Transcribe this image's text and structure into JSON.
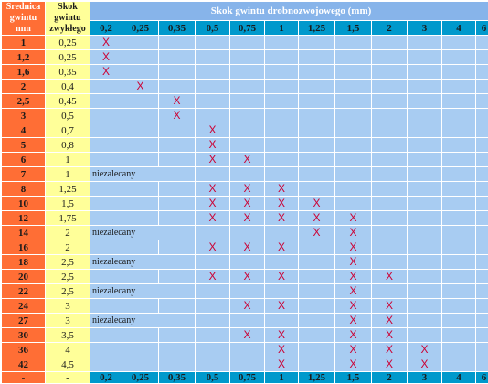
{
  "header": {
    "diam_label": "Średnica gwintu mm",
    "std_label": "Skok gwintu zwykłego",
    "fine_title": "Skok gwintu drobnozwojowego (mm)"
  },
  "pitches": [
    "0,2",
    "0,25",
    "0,35",
    "0,5",
    "0,75",
    "1",
    "1,25",
    "1,5",
    "2",
    "3",
    "4",
    "6"
  ],
  "rows": [
    {
      "d": "1",
      "s": "0,25",
      "x": [
        0
      ]
    },
    {
      "d": "1,2",
      "s": "0,25",
      "x": [
        0
      ]
    },
    {
      "d": "1,6",
      "s": "0,35",
      "x": [
        0
      ]
    },
    {
      "d": "2",
      "s": "0,4",
      "x": [
        1
      ]
    },
    {
      "d": "2,5",
      "s": "0,45",
      "x": [
        2
      ]
    },
    {
      "d": "3",
      "s": "0,5",
      "x": [
        2
      ]
    },
    {
      "d": "4",
      "s": "0,7",
      "x": [
        3
      ]
    },
    {
      "d": "5",
      "s": "0,8",
      "x": [
        3
      ]
    },
    {
      "d": "6",
      "s": "1",
      "x": [
        3,
        4
      ]
    },
    {
      "d": "7",
      "s": "1",
      "x": [],
      "note": "niezalecany"
    },
    {
      "d": "8",
      "s": "1,25",
      "x": [
        3,
        4,
        5
      ]
    },
    {
      "d": "10",
      "s": "1,5",
      "x": [
        3,
        4,
        5,
        6
      ]
    },
    {
      "d": "12",
      "s": "1,75",
      "x": [
        3,
        4,
        5,
        6,
        7
      ]
    },
    {
      "d": "14",
      "s": "2",
      "x": [
        6,
        7
      ],
      "note": "niezalecany"
    },
    {
      "d": "16",
      "s": "2",
      "x": [
        3,
        4,
        5,
        7
      ]
    },
    {
      "d": "18",
      "s": "2,5",
      "x": [
        7
      ],
      "note": "niezalecany"
    },
    {
      "d": "20",
      "s": "2,5",
      "x": [
        3,
        4,
        5,
        7,
        8
      ]
    },
    {
      "d": "22",
      "s": "2,5",
      "x": [
        7
      ],
      "note": "niezalecany"
    },
    {
      "d": "24",
      "s": "3",
      "x": [
        4,
        5,
        7,
        8
      ]
    },
    {
      "d": "27",
      "s": "3",
      "x": [
        7,
        8
      ],
      "note": "niezalecany"
    },
    {
      "d": "30",
      "s": "3,5",
      "x": [
        4,
        5,
        7,
        8
      ]
    },
    {
      "d": "36",
      "s": "4",
      "x": [
        5,
        7,
        8,
        9
      ]
    },
    {
      "d": "42",
      "s": "4,5",
      "x": [
        5,
        7,
        8,
        9
      ]
    }
  ],
  "mark": "X",
  "footer": {
    "d": "-",
    "s": "-"
  }
}
